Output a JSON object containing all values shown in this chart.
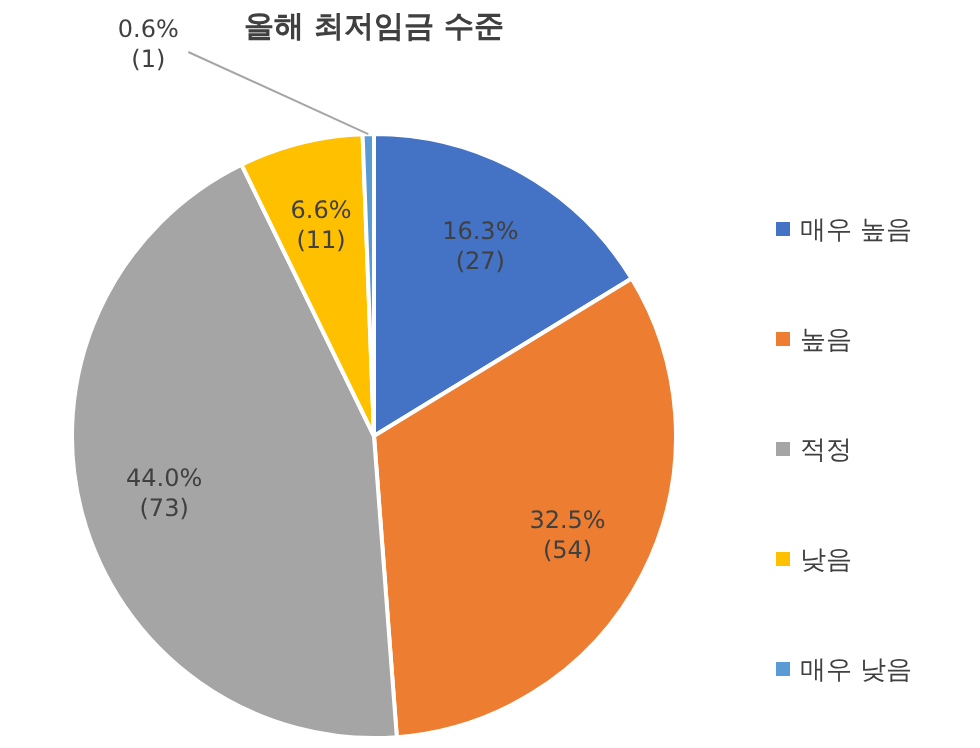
{
  "chart_data": {
    "type": "pie",
    "title": "올해 최저임금 수준",
    "categories": [
      "매우 높음",
      "높음",
      "적정",
      "낮음",
      "매우 낮음"
    ],
    "values": [
      27,
      54,
      73,
      11,
      1
    ],
    "colors": [
      "#4472c4",
      "#ed7d31",
      "#a5a5a5",
      "#ffc000",
      "#5b9bd5"
    ],
    "value_labels": [
      "16.3%\n(27)",
      "32.5%\n(54)",
      "44.0%\n(73)",
      "6.6%\n(11)",
      "0.6%\n(1)"
    ],
    "legend": "right"
  }
}
